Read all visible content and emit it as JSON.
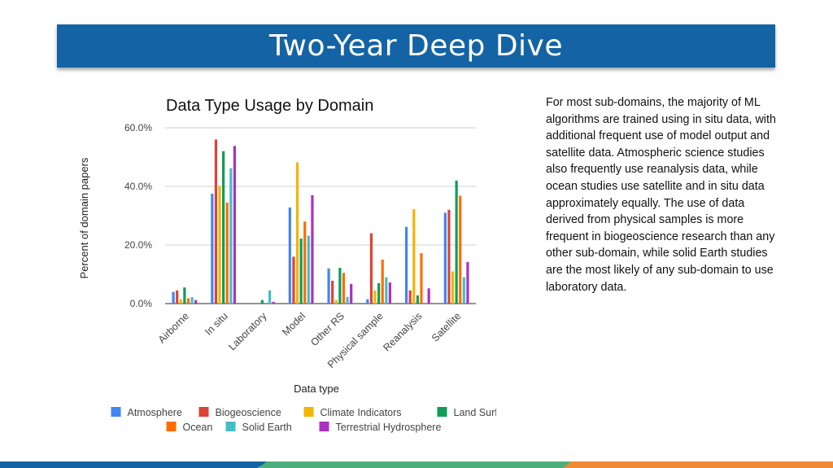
{
  "slide": {
    "title": "Two-Year Deep Dive",
    "body": "For most sub-domains, the majority of ML algorithms are trained using in situ data, with additional frequent use of model output and satellite data. Atmospheric science studies also frequently use reanalysis data, while ocean studies use satellite and in situ data approximately equally. The use of data derived from physical samples is more frequent in biogeoscience research than any other sub-domain, while solid Earth studies are the most likely of any sub-domain to use laboratory data."
  },
  "chart_data": {
    "type": "bar",
    "title": "Data Type Usage by Domain",
    "xlabel": "Data type",
    "ylabel": "Percent of domain papers",
    "ylim": [
      0,
      60
    ],
    "yticks": [
      "0.0%",
      "20.0%",
      "40.0%",
      "60.0%"
    ],
    "grid": true,
    "legend_position": "bottom",
    "categories": [
      "Airborne",
      "In situ",
      "Laboratory",
      "Model",
      "Other RS",
      "Physical sample",
      "Reanalysis",
      "Satellite"
    ],
    "series": [
      {
        "name": "Atmosphere",
        "color": "#4285f4",
        "values": [
          4,
          37.5,
          0,
          32.8,
          12,
          1.5,
          26.2,
          31
        ]
      },
      {
        "name": "Biogeoscience",
        "color": "#db4437",
        "values": [
          4.5,
          56,
          0,
          16,
          7.8,
          24,
          4.5,
          32
        ]
      },
      {
        "name": "Climate Indicators",
        "color": "#f4b400",
        "values": [
          1.5,
          40.2,
          0,
          48.2,
          1.2,
          4.5,
          32.2,
          11
        ]
      },
      {
        "name": "Land Surface",
        "color": "#0f9d58",
        "values": [
          5.5,
          52,
          1.2,
          22.2,
          12.2,
          7,
          2.8,
          42
        ]
      },
      {
        "name": "Ocean",
        "color": "#ff6d01",
        "values": [
          1.8,
          34.5,
          0,
          28,
          10.5,
          15,
          17.2,
          36.8
        ]
      },
      {
        "name": "Solid Earth",
        "color": "#46bdc6",
        "values": [
          2.2,
          46.2,
          4.5,
          23.2,
          2.3,
          9,
          0,
          9
        ]
      },
      {
        "name": "Terrestrial Hydrosphere",
        "color": "#ab30c4",
        "values": [
          1.2,
          53.8,
          0.6,
          37,
          6.7,
          7.2,
          5.2,
          14.2
        ]
      }
    ]
  }
}
